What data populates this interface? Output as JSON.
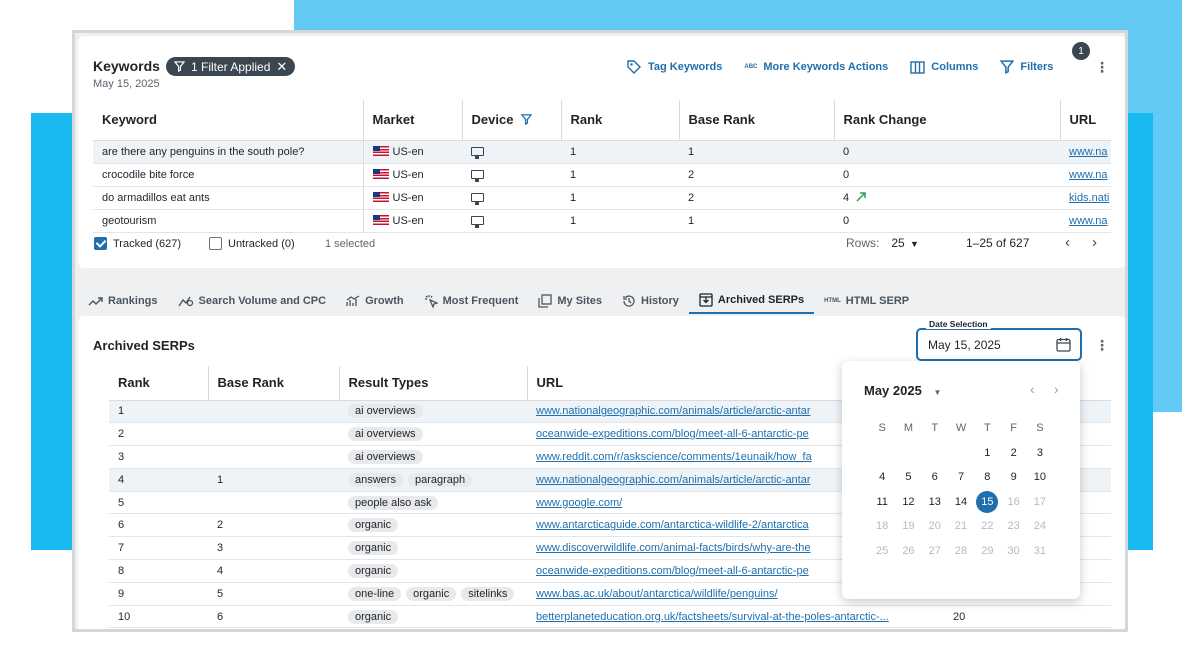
{
  "keywords_card": {
    "title": "Keywords",
    "filter_chip": "1 Filter Applied",
    "date": "May 15, 2025",
    "actions": {
      "tag": "Tag Keywords",
      "more": "More Keywords Actions",
      "columns": "Columns",
      "filters": "Filters",
      "filters_badge": "1",
      "abc_glyph": "ABC"
    },
    "columns": [
      "Keyword",
      "Market",
      "Device",
      "Rank",
      "Base Rank",
      "Rank Change",
      "URL"
    ],
    "rows": [
      {
        "keyword": "are there any penguins in the south pole?",
        "market": "US-en",
        "rank": "1",
        "base_rank": "1",
        "rank_change": "0",
        "url": "www.na"
      },
      {
        "keyword": "crocodile bite force",
        "market": "US-en",
        "rank": "1",
        "base_rank": "2",
        "rank_change": "0",
        "url": "www.na"
      },
      {
        "keyword": "do armadillos eat ants",
        "market": "US-en",
        "rank": "1",
        "base_rank": "2",
        "rank_change": "4",
        "url": "kids.nati"
      },
      {
        "keyword": "geotourism",
        "market": "US-en",
        "rank": "1",
        "base_rank": "1",
        "rank_change": "0",
        "url": "www.na"
      }
    ],
    "footer": {
      "tracked": "Tracked (627)",
      "untracked": "Untracked (0)",
      "selected": "1 selected",
      "rows_label": "Rows:",
      "rows_value": "25",
      "range": "1–25 of 627"
    }
  },
  "tabs": [
    {
      "label": "Rankings",
      "icon": "trend-icon"
    },
    {
      "label": "Search Volume and CPC",
      "icon": "volume-icon"
    },
    {
      "label": "Growth",
      "icon": "growth-icon"
    },
    {
      "label": "Most Frequent",
      "icon": "click-icon"
    },
    {
      "label": "My Sites",
      "icon": "sites-icon"
    },
    {
      "label": "History",
      "icon": "history-icon"
    },
    {
      "label": "Archived SERPs",
      "icon": "archive-icon"
    },
    {
      "label": "HTML SERP",
      "icon": "html-icon",
      "glyph": "HTML"
    }
  ],
  "archived": {
    "title": "Archived SERPs",
    "date_label": "Date Selection",
    "date_value": "May 15, 2025",
    "columns": [
      "Rank",
      "Base Rank",
      "Result Types",
      "URL"
    ],
    "rows": [
      {
        "rank": "1",
        "base_rank": "",
        "types": [
          "ai overviews"
        ],
        "url": "www.nationalgeographic.com/animals/article/arctic-antar",
        "extra": ""
      },
      {
        "rank": "2",
        "base_rank": "",
        "types": [
          "ai overviews"
        ],
        "url": "oceanwide-expeditions.com/blog/meet-all-6-antarctic-pe",
        "extra": ""
      },
      {
        "rank": "3",
        "base_rank": "",
        "types": [
          "ai overviews"
        ],
        "url": "www.reddit.com/r/askscience/comments/1eunaik/how_fa",
        "extra": ""
      },
      {
        "rank": "4",
        "base_rank": "1",
        "types": [
          "answers",
          "paragraph"
        ],
        "url": "www.nationalgeographic.com/animals/article/arctic-antar",
        "extra": ""
      },
      {
        "rank": "5",
        "base_rank": "",
        "types": [
          "people also ask"
        ],
        "url": "www.google.com/",
        "extra": ""
      },
      {
        "rank": "6",
        "base_rank": "2",
        "types": [
          "organic"
        ],
        "url": "www.antarcticaguide.com/antarctica-wildlife-2/antarctica",
        "extra": ""
      },
      {
        "rank": "7",
        "base_rank": "3",
        "types": [
          "organic"
        ],
        "url": "www.discoverwildlife.com/animal-facts/birds/why-are-the",
        "extra": ""
      },
      {
        "rank": "8",
        "base_rank": "4",
        "types": [
          "organic"
        ],
        "url": "oceanwide-expeditions.com/blog/meet-all-6-antarctic-pe",
        "extra": ""
      },
      {
        "rank": "9",
        "base_rank": "5",
        "types": [
          "one-line",
          "organic",
          "sitelinks"
        ],
        "url": "www.bas.ac.uk/about/antarctica/wildlife/penguins/",
        "extra": ""
      },
      {
        "rank": "10",
        "base_rank": "6",
        "types": [
          "organic"
        ],
        "url": "betterplaneteducation.org.uk/factsheets/survival-at-the-poles-antarctic-...",
        "extra": "20"
      }
    ]
  },
  "calendar": {
    "month": "May 2025",
    "weekdays": [
      "S",
      "M",
      "T",
      "W",
      "T",
      "F",
      "S"
    ],
    "days": [
      "",
      "",
      "",
      "",
      "1",
      "2",
      "3",
      "4",
      "5",
      "6",
      "7",
      "8",
      "9",
      "10",
      "11",
      "12",
      "13",
      "14",
      "15",
      "16",
      "17",
      "18",
      "19",
      "20",
      "21",
      "22",
      "23",
      "24",
      "25",
      "26",
      "27",
      "28",
      "29",
      "30",
      "31"
    ],
    "selected": "15",
    "last_enabled": 15
  },
  "colors": {
    "accent": "#1f6fae",
    "bg_blue": "#1ab8f0",
    "bg_light": "#62c9f5"
  }
}
